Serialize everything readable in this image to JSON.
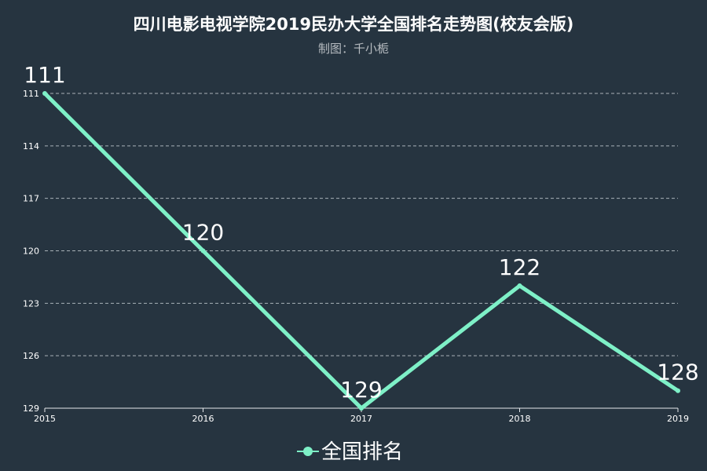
{
  "chart_data": {
    "type": "line",
    "title": "四川电影电视学院2019民办大学全国排名走势图(校友会版)",
    "subtitle": "制图：千小栀",
    "xlabel": "",
    "ylabel": "",
    "categories": [
      "2015",
      "2016",
      "2017",
      "2018",
      "2019"
    ],
    "series": [
      {
        "name": "全国排名",
        "values": [
          111,
          120,
          129,
          122,
          128
        ]
      }
    ],
    "ylim": [
      111,
      129
    ],
    "y_inverted": true,
    "y_ticks": [
      "111",
      "114",
      "117",
      "120",
      "123",
      "126",
      "129"
    ],
    "grid": true,
    "legend": "bottom-center",
    "colors": {
      "background": "#263440",
      "line": "#7ef0c7"
    }
  }
}
